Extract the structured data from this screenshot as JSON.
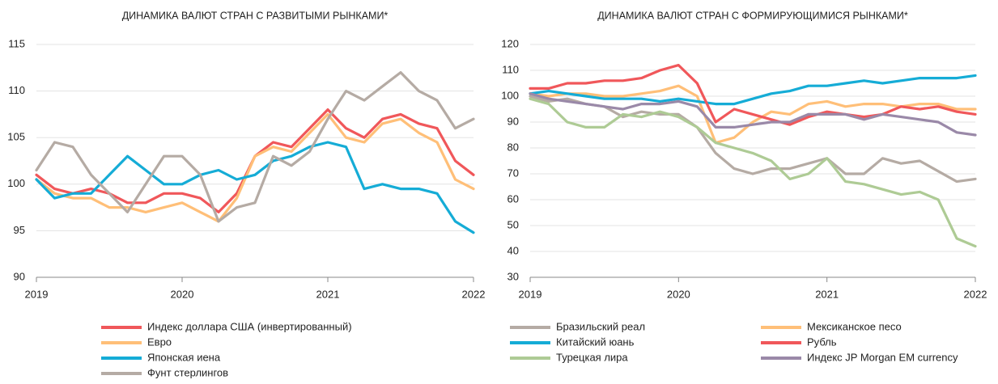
{
  "chart_data": [
    {
      "type": "line",
      "title": "ДИНАМИКА ВАЛЮТ СТРАН С РАЗВИТЫМИ РЫНКАМИ*",
      "x": [
        2019,
        2019.125,
        2019.25,
        2019.375,
        2019.5,
        2019.625,
        2019.75,
        2019.875,
        2020,
        2020.125,
        2020.25,
        2020.375,
        2020.5,
        2020.625,
        2020.75,
        2020.875,
        2021,
        2021.125,
        2021.25,
        2021.375,
        2021.5,
        2021.625,
        2021.75,
        2021.875,
        2022
      ],
      "xlim": [
        2019,
        2022
      ],
      "xticks": [
        2019,
        2020,
        2021,
        2022
      ],
      "ylim": [
        90,
        115
      ],
      "yticks": [
        90,
        95,
        100,
        105,
        110,
        115
      ],
      "grid": true,
      "legend": "bottom",
      "series": [
        {
          "name": "Индекс доллара США (инвертированный)",
          "color": "#f0575a",
          "values": [
            101,
            99.5,
            99,
            99.5,
            99,
            98,
            98,
            99,
            99,
            98.5,
            97,
            99,
            103,
            104.5,
            104,
            106,
            108,
            106,
            105,
            107,
            107.5,
            106.5,
            106,
            102.5,
            101
          ]
        },
        {
          "name": "Евро",
          "color": "#ffbf78",
          "values": [
            100.5,
            99,
            98.5,
            98.5,
            97.5,
            97.5,
            97,
            97.5,
            98,
            97,
            96,
            98.5,
            103,
            104,
            103.5,
            105.5,
            107.5,
            105,
            104.5,
            106.5,
            107,
            105.5,
            104.5,
            100.5,
            99.5
          ]
        },
        {
          "name": "Японская иена",
          "color": "#15acd6",
          "values": [
            100.5,
            98.5,
            99,
            99,
            101,
            103,
            101.5,
            100,
            100,
            101,
            101.5,
            100.5,
            101,
            102.5,
            103,
            104,
            104.5,
            104,
            99.5,
            100,
            99.5,
            99.5,
            99,
            96,
            94.8
          ]
        },
        {
          "name": "Фунт стерлингов",
          "color": "#b5aba4",
          "values": [
            101.5,
            104.5,
            104,
            101,
            99,
            97,
            100,
            103,
            103,
            101,
            96,
            97.5,
            98,
            103,
            102,
            103.5,
            107,
            110,
            109,
            110.5,
            112,
            110,
            109,
            106,
            107
          ]
        }
      ]
    },
    {
      "type": "line",
      "title": "ДИНАМИКА ВАЛЮТ СТРАН С ФОРМИРУЮЩИМИСЯ РЫНКАМИ*",
      "x": [
        2019,
        2019.125,
        2019.25,
        2019.375,
        2019.5,
        2019.625,
        2019.75,
        2019.875,
        2020,
        2020.125,
        2020.25,
        2020.375,
        2020.5,
        2020.625,
        2020.75,
        2020.875,
        2021,
        2021.125,
        2021.25,
        2021.375,
        2021.5,
        2021.625,
        2021.75,
        2021.875,
        2022
      ],
      "xlim": [
        2019,
        2022
      ],
      "xticks": [
        2019,
        2020,
        2021,
        2022
      ],
      "ylim": [
        30,
        120
      ],
      "yticks": [
        30,
        40,
        50,
        60,
        70,
        80,
        90,
        100,
        110,
        120
      ],
      "grid": true,
      "legend": "bottom",
      "series": [
        {
          "name": "Бразильский реал",
          "color": "#b5aba4",
          "values": [
            100,
            98,
            99,
            97,
            96,
            92,
            94,
            93,
            93,
            88,
            78,
            72,
            70,
            72,
            72,
            74,
            76,
            70,
            70,
            76,
            74,
            75,
            71,
            67,
            68
          ]
        },
        {
          "name": "Мексиканское песо",
          "color": "#ffbf78",
          "values": [
            101,
            100,
            101,
            101,
            100,
            100,
            101,
            102,
            104,
            100,
            82,
            84,
            90,
            94,
            93,
            97,
            98,
            96,
            97,
            97,
            96,
            97,
            97,
            95,
            95
          ]
        },
        {
          "name": "Китайский юань",
          "color": "#15acd6",
          "values": [
            101,
            102,
            101,
            100,
            99,
            99,
            99,
            98,
            99,
            98,
            97,
            97,
            99,
            101,
            102,
            104,
            104,
            105,
            106,
            105,
            106,
            107,
            107,
            107,
            108
          ]
        },
        {
          "name": "Рубль",
          "color": "#f0575a",
          "values": [
            103,
            103,
            105,
            105,
            106,
            106,
            107,
            110,
            112,
            105,
            90,
            95,
            93,
            91,
            89,
            92,
            94,
            93,
            92,
            93,
            96,
            95,
            96,
            94,
            93
          ]
        },
        {
          "name": "Турецкая лира",
          "color": "#aecb95",
          "values": [
            99,
            97,
            90,
            88,
            88,
            93,
            92,
            94,
            92,
            88,
            82,
            80,
            78,
            75,
            68,
            70,
            76,
            67,
            66,
            64,
            62,
            63,
            60,
            45,
            42
          ]
        },
        {
          "name": "Индекс JP Morgan EM currency",
          "color": "#9a89a8",
          "values": [
            101,
            99,
            98,
            97,
            96,
            95,
            97,
            97,
            98,
            96,
            88,
            88,
            89,
            90,
            90,
            93,
            93,
            93,
            91,
            93,
            92,
            91,
            90,
            86,
            85
          ]
        }
      ]
    }
  ]
}
